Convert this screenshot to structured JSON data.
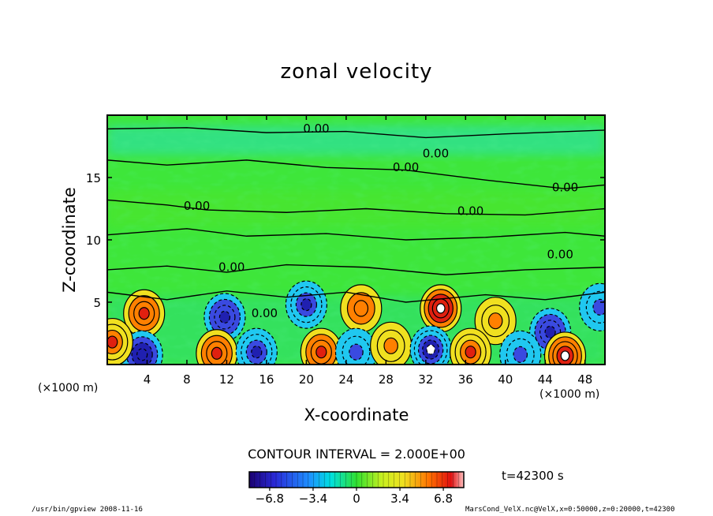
{
  "chart_data": {
    "type": "heatmap",
    "title": "zonal velocity",
    "xlabel": "X-coordinate",
    "ylabel": "Z-coordinate",
    "x_unit_left": "(×1000 m)",
    "x_unit_right": "(×1000 m)",
    "xlim": [
      0,
      50
    ],
    "ylim": [
      0,
      20
    ],
    "x_ticks": [
      "4",
      "8",
      "12",
      "16",
      "20",
      "24",
      "28",
      "32",
      "36",
      "40",
      "44",
      "48"
    ],
    "x_tick_values": [
      4,
      8,
      12,
      16,
      20,
      24,
      28,
      32,
      36,
      40,
      44,
      48
    ],
    "y_ticks": [
      "5",
      "10",
      "15"
    ],
    "y_tick_values": [
      5,
      10,
      15
    ],
    "contour_interval_text": "CONTOUR INTERVAL = 2.000E+00",
    "contour_labels": [
      {
        "text": "0.00",
        "x": 21,
        "y": 18.6
      },
      {
        "text": "0.00",
        "x": 30,
        "y": 15.5
      },
      {
        "text": "0.00",
        "x": 33,
        "y": 16.6
      },
      {
        "text": "0.00",
        "x": 46,
        "y": 13.9
      },
      {
        "text": "0.00",
        "x": 9,
        "y": 12.4
      },
      {
        "text": "0.00",
        "x": 36.5,
        "y": 12
      },
      {
        "text": "0.00",
        "x": 45.5,
        "y": 8.5
      },
      {
        "text": "0.00",
        "x": 12.5,
        "y": 7.5
      },
      {
        "text": "0.00",
        "x": 15.8,
        "y": 3.8
      }
    ],
    "vortices": [
      {
        "x": 3.7,
        "z": 4.1,
        "value": 6.0
      },
      {
        "x": 11.8,
        "z": 3.8,
        "value": -6.0
      },
      {
        "x": 20.0,
        "z": 4.8,
        "value": -5.5
      },
      {
        "x": 25.5,
        "z": 4.5,
        "value": 4.5
      },
      {
        "x": 33.5,
        "z": 4.5,
        "value": 8.0
      },
      {
        "x": 39.0,
        "z": 3.5,
        "value": 3.0
      },
      {
        "x": 44.5,
        "z": 2.6,
        "value": -6.0
      },
      {
        "x": 49.5,
        "z": 4.6,
        "value": -4.0
      },
      {
        "x": 3.5,
        "z": 0.8,
        "value": -6.5
      },
      {
        "x": 11.0,
        "z": 0.9,
        "value": 6.0
      },
      {
        "x": 15.0,
        "z": 1.0,
        "value": -5.0
      },
      {
        "x": 21.5,
        "z": 1.0,
        "value": 6.0
      },
      {
        "x": 25.0,
        "z": 1.0,
        "value": -3.0
      },
      {
        "x": 28.5,
        "z": 1.5,
        "value": 3.5
      },
      {
        "x": 32.5,
        "z": 1.2,
        "value": -7.0
      },
      {
        "x": 36.5,
        "z": 1.0,
        "value": 5.0
      },
      {
        "x": 41.5,
        "z": 0.8,
        "value": -3.5
      },
      {
        "x": 46.0,
        "z": 0.7,
        "value": 7.0
      },
      {
        "x": 0.5,
        "z": 1.8,
        "value": 5.0
      }
    ],
    "colorbar": {
      "min": -8.4,
      "max": 8.4,
      "tick_labels": [
        "−6.8",
        "−3.4",
        "0",
        "3.4",
        "6.8"
      ],
      "tick_values": [
        -6.8,
        -3.4,
        0,
        3.4,
        6.8
      ]
    }
  },
  "time_label": "t=42300 s",
  "footer_left": "/usr/bin/gpview  2008-11-16",
  "footer_right": "MarsCond_VelX.nc@VelX,x=0:50000,z=0:20000,t=42300"
}
